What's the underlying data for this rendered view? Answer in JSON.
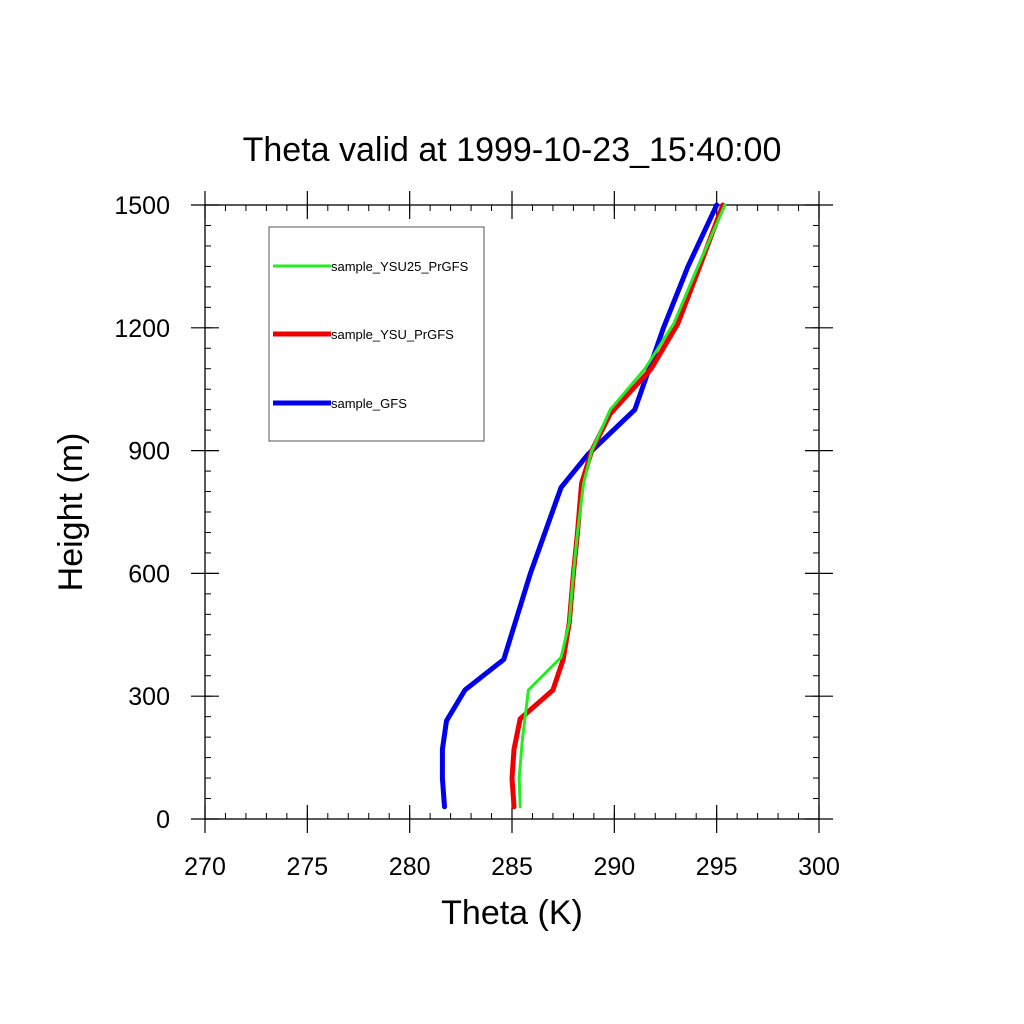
{
  "chart_data": {
    "type": "line",
    "title": "Theta valid at 1999-10-23_15:40:00",
    "xlabel": "Theta (K)",
    "ylabel": "Height (m)",
    "xlim": [
      270,
      300
    ],
    "ylim": [
      0,
      1500
    ],
    "xticks": [
      270,
      275,
      280,
      285,
      290,
      295,
      300
    ],
    "yticks": [
      0,
      300,
      600,
      900,
      1200,
      1500
    ],
    "xtick_labels": [
      "270",
      "275",
      "280",
      "285",
      "290",
      "295",
      "300"
    ],
    "ytick_labels": [
      "0",
      "300",
      "600",
      "900",
      "1200",
      "1500"
    ],
    "grid": false,
    "legend_position": "top-left",
    "series": [
      {
        "name": "sample_YSU25_PrGFS",
        "color": "#22ee22",
        "line_width": 3,
        "points": [
          [
            285.4,
            30
          ],
          [
            285.35,
            100
          ],
          [
            285.5,
            190
          ],
          [
            285.8,
            315
          ],
          [
            287.4,
            395
          ],
          [
            287.8,
            480
          ],
          [
            288.0,
            600
          ],
          [
            288.2,
            700
          ],
          [
            288.5,
            820
          ],
          [
            288.9,
            900
          ],
          [
            289.8,
            1000
          ],
          [
            291.5,
            1100
          ],
          [
            292.9,
            1210
          ],
          [
            294.0,
            1340
          ],
          [
            295.4,
            1500
          ]
        ]
      },
      {
        "name": "sample_YSU_PrGFS",
        "color": "#ee0000",
        "line_width": 5,
        "points": [
          [
            285.1,
            30
          ],
          [
            285.0,
            100
          ],
          [
            285.1,
            170
          ],
          [
            285.4,
            245
          ],
          [
            287.0,
            315
          ],
          [
            287.5,
            390
          ],
          [
            287.8,
            480
          ],
          [
            288.0,
            600
          ],
          [
            288.2,
            700
          ],
          [
            288.4,
            820
          ],
          [
            288.9,
            900
          ],
          [
            289.8,
            990
          ],
          [
            291.8,
            1100
          ],
          [
            293.1,
            1210
          ],
          [
            294.1,
            1340
          ],
          [
            295.3,
            1500
          ]
        ]
      },
      {
        "name": "sample_GFS",
        "color": "#0000ee",
        "line_width": 5,
        "points": [
          [
            281.7,
            30
          ],
          [
            281.6,
            100
          ],
          [
            281.6,
            170
          ],
          [
            281.8,
            240
          ],
          [
            282.7,
            315
          ],
          [
            284.6,
            390
          ],
          [
            285.9,
            600
          ],
          [
            287.4,
            810
          ],
          [
            288.7,
            890
          ],
          [
            291.0,
            1000
          ],
          [
            292.4,
            1200
          ],
          [
            293.6,
            1350
          ],
          [
            295.0,
            1500
          ]
        ]
      }
    ]
  }
}
